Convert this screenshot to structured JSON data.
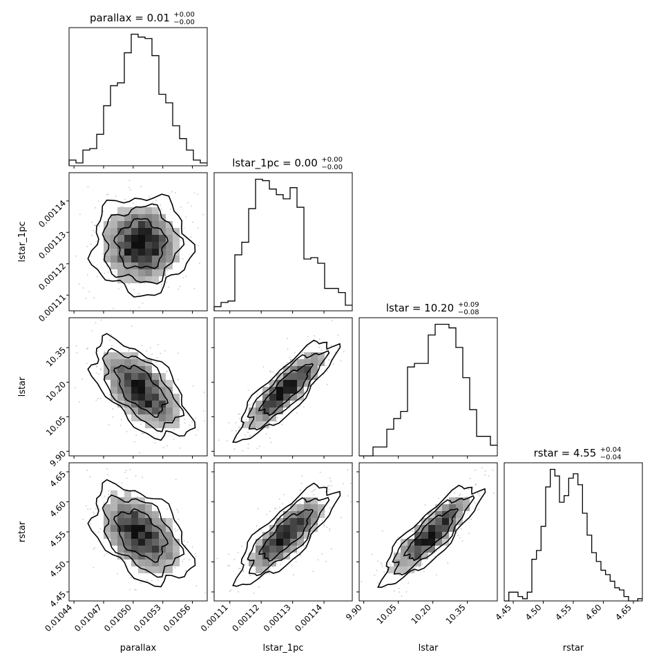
{
  "chart_data": {
    "type": "corner",
    "parameters": [
      {
        "name": "parallax",
        "range": [
          0.010435,
          0.010575
        ],
        "ticks": [
          "0.01044",
          "0.01047",
          "0.01050",
          "0.01053",
          "0.01056"
        ],
        "tick_values": [
          0.01044,
          0.01047,
          0.0105,
          0.01053,
          0.01056
        ]
      },
      {
        "name": "lstar_1pc",
        "range": [
          0.001105,
          0.001149
        ],
        "ticks": [
          "0.00111",
          "0.00112",
          "0.00113",
          "0.00114"
        ],
        "tick_values": [
          0.00111,
          0.00112,
          0.00113,
          0.00114
        ]
      },
      {
        "name": "lstar",
        "range": [
          9.88,
          10.48
        ],
        "ticks": [
          "9.90",
          "10.05",
          "10.20",
          "10.35"
        ],
        "tick_values": [
          9.9,
          10.05,
          10.2,
          10.35
        ]
      },
      {
        "name": "rstar",
        "range": [
          4.435,
          4.665
        ],
        "ticks": [
          "4.45",
          "4.50",
          "4.55",
          "4.60",
          "4.65"
        ],
        "tick_values": [
          4.45,
          4.5,
          4.55,
          4.6,
          4.65
        ]
      }
    ],
    "titles": [
      {
        "main": "parallax = 0.01",
        "sup": "+0.00",
        "sub": "−0.00"
      },
      {
        "main": "lstar_1pc = 0.00",
        "sup": "+0.00",
        "sub": "−0.00"
      },
      {
        "main": "lstar = 10.20",
        "sup": "+0.09",
        "sub": "−0.08"
      },
      {
        "main": "rstar = 4.55",
        "sup": "+0.04",
        "sub": "−0.04"
      }
    ],
    "histograms": [
      {
        "param": "parallax",
        "counts": [
          4,
          2,
          11,
          12,
          22,
          42,
          56,
          58,
          79,
          92,
          90,
          89,
          77,
          50,
          44,
          28,
          19,
          11,
          4,
          2
        ]
      },
      {
        "param": "lstar_1pc",
        "counts": [
          3,
          6,
          7,
          40,
          49,
          73,
          94,
          93,
          87,
          83,
          80,
          88,
          74,
          37,
          38,
          34,
          16,
          16,
          13,
          4
        ]
      },
      {
        "param": "lstar",
        "counts": [
          0,
          0,
          5,
          5,
          15,
          21,
          25,
          50,
          52,
          52,
          68,
          74,
          74,
          72,
          61,
          44,
          26,
          11,
          11,
          6
        ]
      },
      {
        "param": "rstar",
        "counts": [
          0,
          4,
          4,
          2,
          1,
          4,
          19,
          23,
          34,
          52,
          60,
          57,
          45,
          48,
          56,
          58,
          53,
          40,
          30,
          22,
          18,
          14,
          12,
          9,
          6,
          5,
          2,
          0,
          0,
          1
        ]
      }
    ],
    "pairs": [
      {
        "x": "parallax",
        "y": "lstar_1pc",
        "correlation": 0.0
      },
      {
        "x": "parallax",
        "y": "lstar",
        "correlation": -0.6
      },
      {
        "x": "lstar_1pc",
        "y": "lstar",
        "correlation": 0.85
      },
      {
        "x": "parallax",
        "y": "rstar",
        "correlation": -0.45
      },
      {
        "x": "lstar_1pc",
        "y": "rstar",
        "correlation": 0.8
      },
      {
        "x": "lstar",
        "y": "rstar",
        "correlation": 0.85
      }
    ]
  }
}
